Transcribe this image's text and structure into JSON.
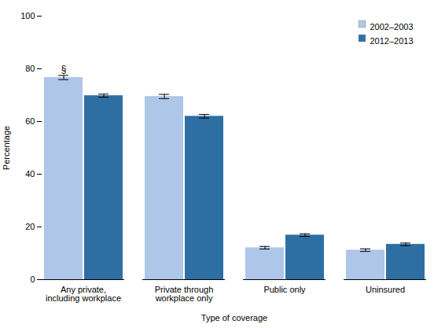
{
  "chart_data": {
    "type": "bar",
    "categories": [
      "Any private,\nincluding workplace",
      "Private through\nworkplace only",
      "Public only",
      "Uninsured"
    ],
    "series": [
      {
        "name": "2002–2003",
        "color": "#aec6e8",
        "values": [
          76.7,
          69.5,
          12.1,
          11.2
        ],
        "errors": [
          0.8,
          0.8,
          0.5,
          0.5
        ]
      },
      {
        "name": "2012–2013",
        "color": "#2e6fa3",
        "values": [
          69.8,
          62.0,
          16.9,
          13.4
        ],
        "errors": [
          0.6,
          0.7,
          0.5,
          0.5
        ]
      }
    ],
    "xlabel": "Type of coverage",
    "ylabel": "Percentage",
    "ylim": [
      0,
      100
    ],
    "yticks": [
      0,
      20,
      40,
      60,
      80,
      100
    ],
    "grid": false,
    "legend": "upper right",
    "annotations": [
      {
        "text": "§",
        "category": "Any private,\nincluding workplace",
        "series": "2002–2003"
      }
    ]
  }
}
